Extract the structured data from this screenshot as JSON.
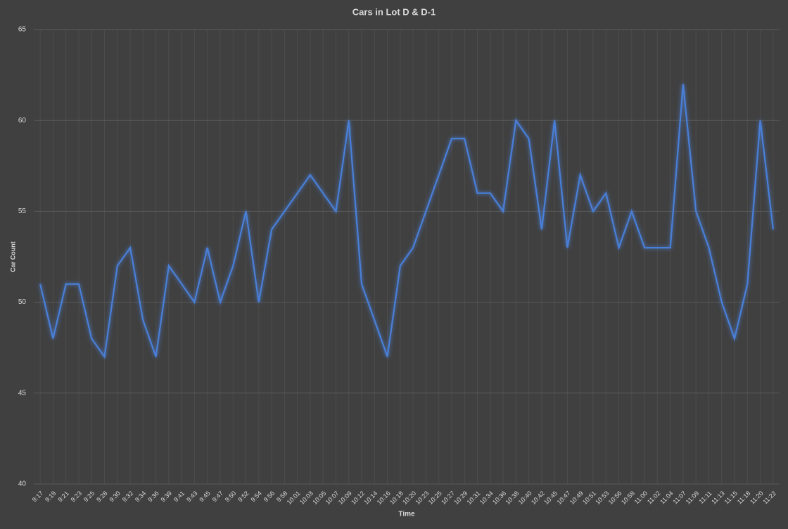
{
  "chart_data": {
    "type": "line",
    "title": "Cars in Lot D & D-1",
    "xlabel": "Time",
    "ylabel": "Car Count",
    "categories": [
      "9:17",
      "9:19",
      "9:21",
      "9:23",
      "9:25",
      "9:28",
      "9:30",
      "9:32",
      "9:34",
      "9:36",
      "9:39",
      "9:41",
      "9:43",
      "9:45",
      "9:47",
      "9:50",
      "9:52",
      "9:54",
      "9:56",
      "9:58",
      "10:01",
      "10:03",
      "10:05",
      "10:07",
      "10:09",
      "10:12",
      "10:14",
      "10:16",
      "10:18",
      "10:20",
      "10:23",
      "10:25",
      "10:27",
      "10:29",
      "10:31",
      "10:34",
      "10:36",
      "10:38",
      "10:40",
      "10:42",
      "10:45",
      "10:47",
      "10:49",
      "10:51",
      "10:53",
      "10:56",
      "10:58",
      "11:00",
      "11:02",
      "11:04",
      "11:07",
      "11:09",
      "11:11",
      "11:13",
      "11:15",
      "11:18",
      "11:20",
      "11:22"
    ],
    "values": [
      51,
      48,
      51,
      51,
      48,
      47,
      52,
      53,
      49,
      47,
      52,
      51,
      50,
      53,
      50,
      52,
      55,
      50,
      54,
      55,
      56,
      57,
      56,
      55,
      60,
      51,
      49,
      47,
      52,
      53,
      55,
      57,
      59,
      59,
      56,
      56,
      55,
      60,
      59,
      54,
      60,
      53,
      57,
      55,
      56,
      53,
      55,
      53,
      53,
      53,
      62,
      55,
      53,
      50,
      48,
      51,
      60,
      54
    ],
    "color": "#4a7fd8",
    "ylim": [
      40,
      65
    ],
    "yticks": [
      40,
      45,
      50,
      55,
      60,
      65
    ],
    "grid": true
  }
}
